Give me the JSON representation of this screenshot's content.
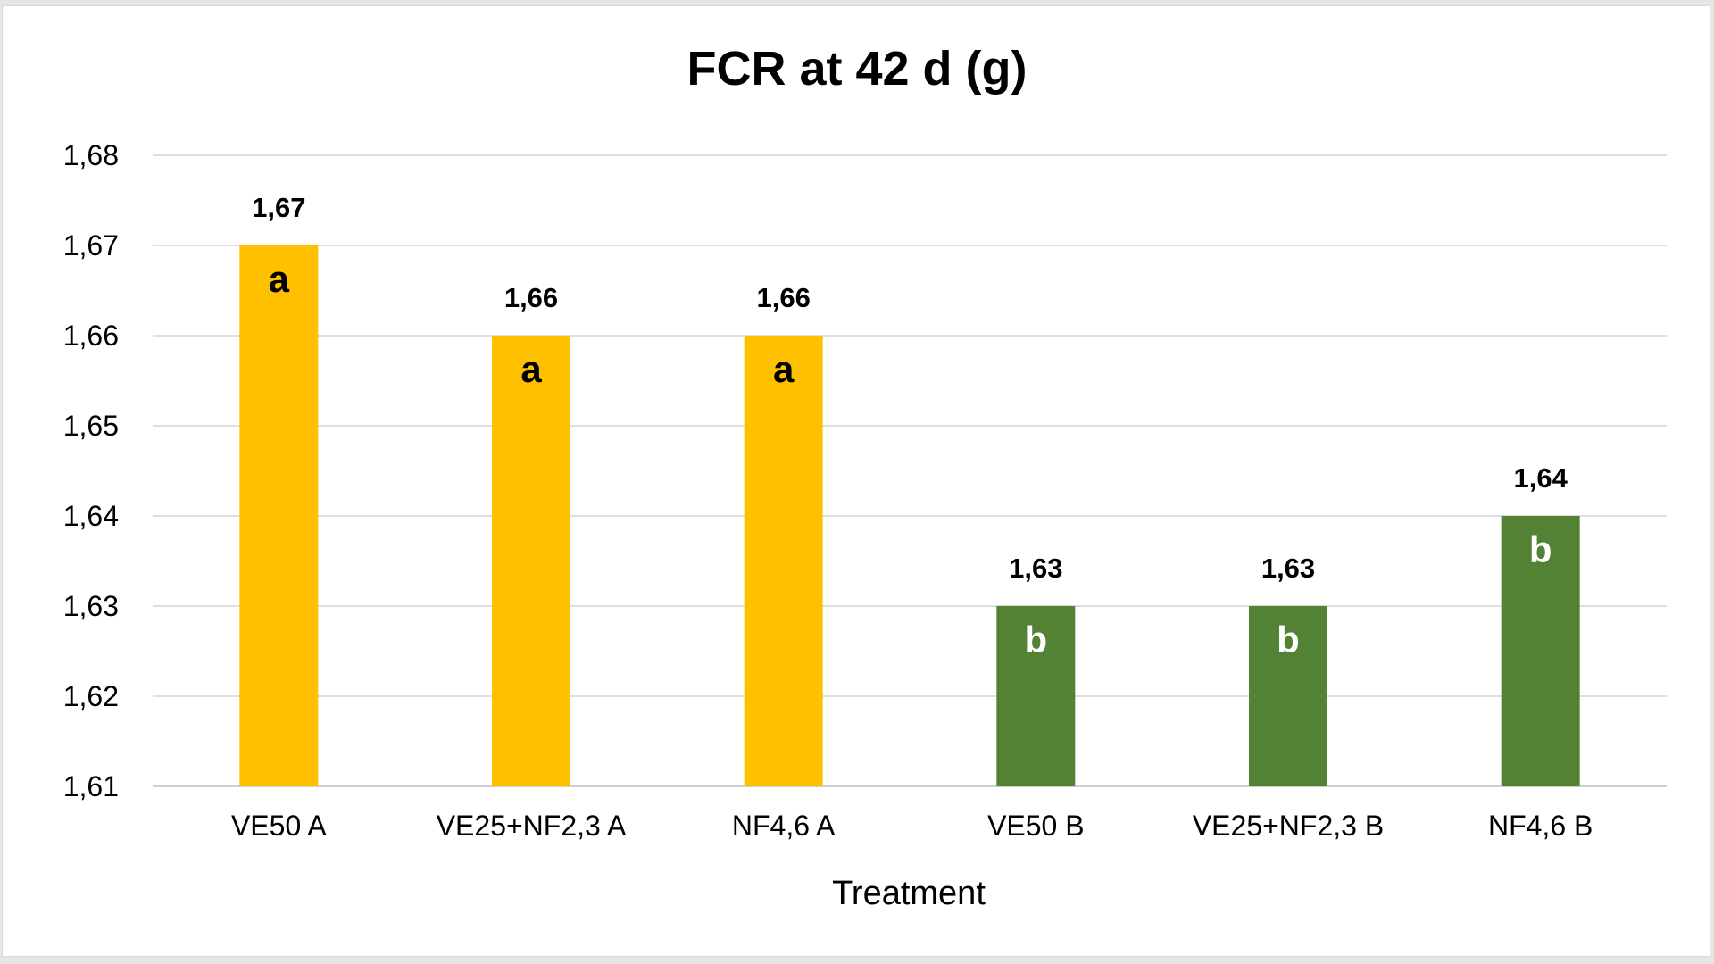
{
  "chart_data": {
    "type": "bar",
    "title": "FCR at 42 d (g)",
    "xlabel": "Treatment",
    "ylabel": "",
    "ylim": [
      1.61,
      1.68
    ],
    "yticks": [
      "1,61",
      "1,62",
      "1,63",
      "1,64",
      "1,65",
      "1,66",
      "1,67",
      "1,68"
    ],
    "categories": [
      "VE50 A",
      "VE25+NF2,3 A",
      "NF4,6 A",
      "VE50 B",
      "VE25+NF2,3 B",
      "NF4,6 B"
    ],
    "values": [
      1.67,
      1.66,
      1.66,
      1.63,
      1.63,
      1.64
    ],
    "value_labels": [
      "1,67",
      "1,66",
      "1,66",
      "1,63",
      "1,63",
      "1,64"
    ],
    "significance_letters": [
      "a",
      "a",
      "a",
      "b",
      "b",
      "b"
    ],
    "bar_colors": [
      "#FFC000",
      "#FFC000",
      "#FFC000",
      "#548235",
      "#548235",
      "#548235"
    ],
    "letter_colors": [
      "#000000",
      "#000000",
      "#000000",
      "#ffffff",
      "#ffffff",
      "#ffffff"
    ],
    "gridlines": true,
    "legend": "none"
  }
}
